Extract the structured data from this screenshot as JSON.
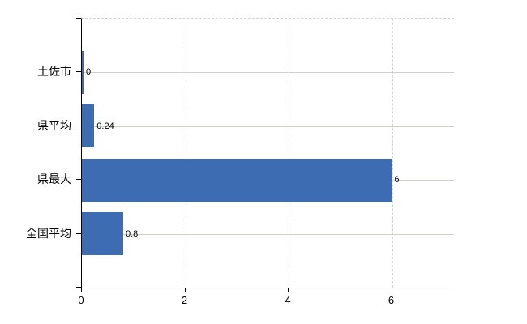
{
  "chart_data": {
    "type": "bar",
    "orientation": "horizontal",
    "title": "",
    "xlabel": "",
    "ylabel": "",
    "categories": [
      "土佐市",
      "県平均",
      "県最大",
      "全国平均"
    ],
    "values": [
      0,
      0.24,
      6,
      0.8
    ],
    "value_labels": [
      "0",
      "0.24",
      "6",
      "0.8"
    ],
    "x_ticks": [
      0,
      2,
      4,
      6
    ],
    "x_tick_labels": [
      "0",
      "2",
      "4",
      "6"
    ],
    "xlim": [
      0,
      7.2
    ],
    "grid": true,
    "legend": false,
    "colors": {
      "bar": "#3e6cb2",
      "axis": "#000000",
      "vertical_grid": "#d4d4d4",
      "horizontal_grid": "#ccd2c8",
      "text": "#000000",
      "background": "#ffffff"
    }
  }
}
